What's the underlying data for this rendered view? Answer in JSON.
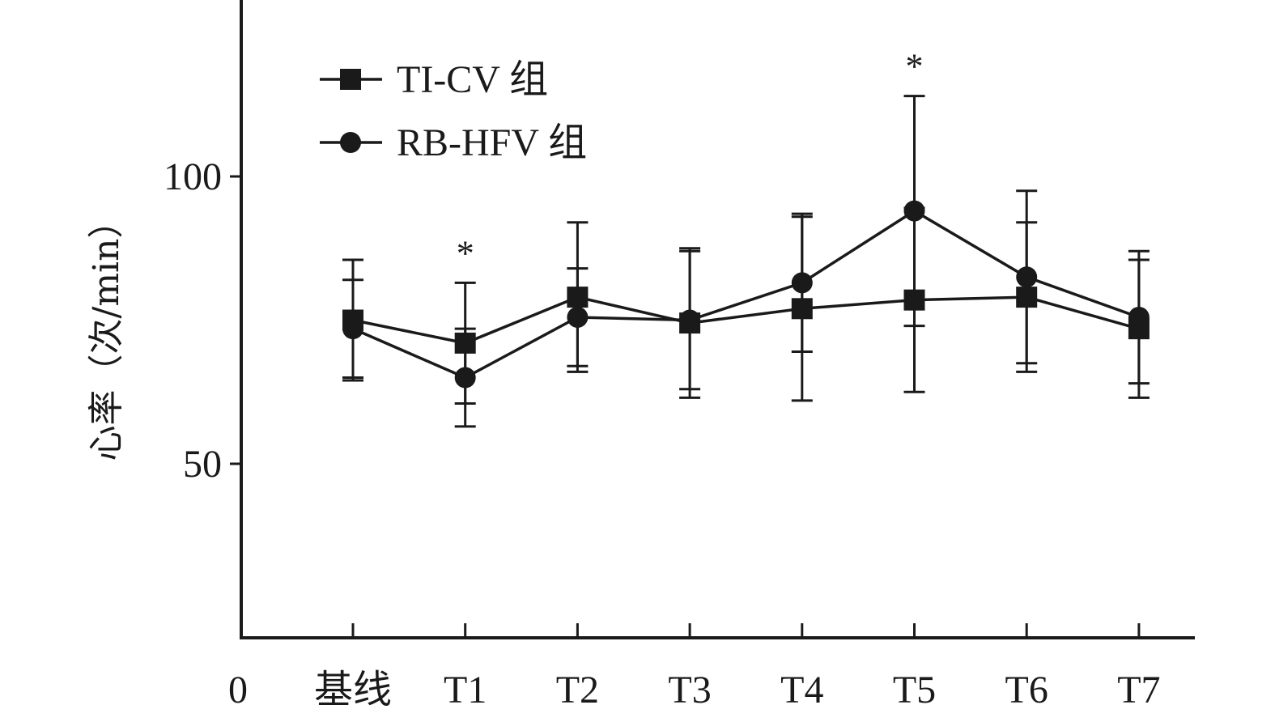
{
  "chart_data": {
    "type": "line",
    "ylabel": "心率（次/min）",
    "categories": [
      "基线",
      "T1",
      "T2",
      "T3",
      "T4",
      "T5",
      "T6",
      "T7"
    ],
    "origin_label": "0",
    "y_ticks": [
      50,
      100
    ],
    "ylim": [
      20,
      130
    ],
    "series": [
      {
        "name": "TI-CV 组",
        "marker": "square",
        "values": [
          75,
          71,
          79,
          74.5,
          77,
          78.5,
          79,
          73.5
        ],
        "error": [
          10.5,
          10.5,
          13,
          13,
          16,
          16,
          13,
          12
        ]
      },
      {
        "name": "RB-HFV 组",
        "marker": "circle",
        "values": [
          73.5,
          65,
          75.5,
          75,
          81.5,
          94,
          82.5,
          75.5
        ],
        "error": [
          8.5,
          8.5,
          8.5,
          12,
          12,
          20,
          15,
          11.5
        ]
      }
    ],
    "annotations": [
      {
        "category": "T1",
        "text": "*"
      },
      {
        "category": "T5",
        "text": "*"
      }
    ],
    "line_color": "#1a1a1a"
  }
}
